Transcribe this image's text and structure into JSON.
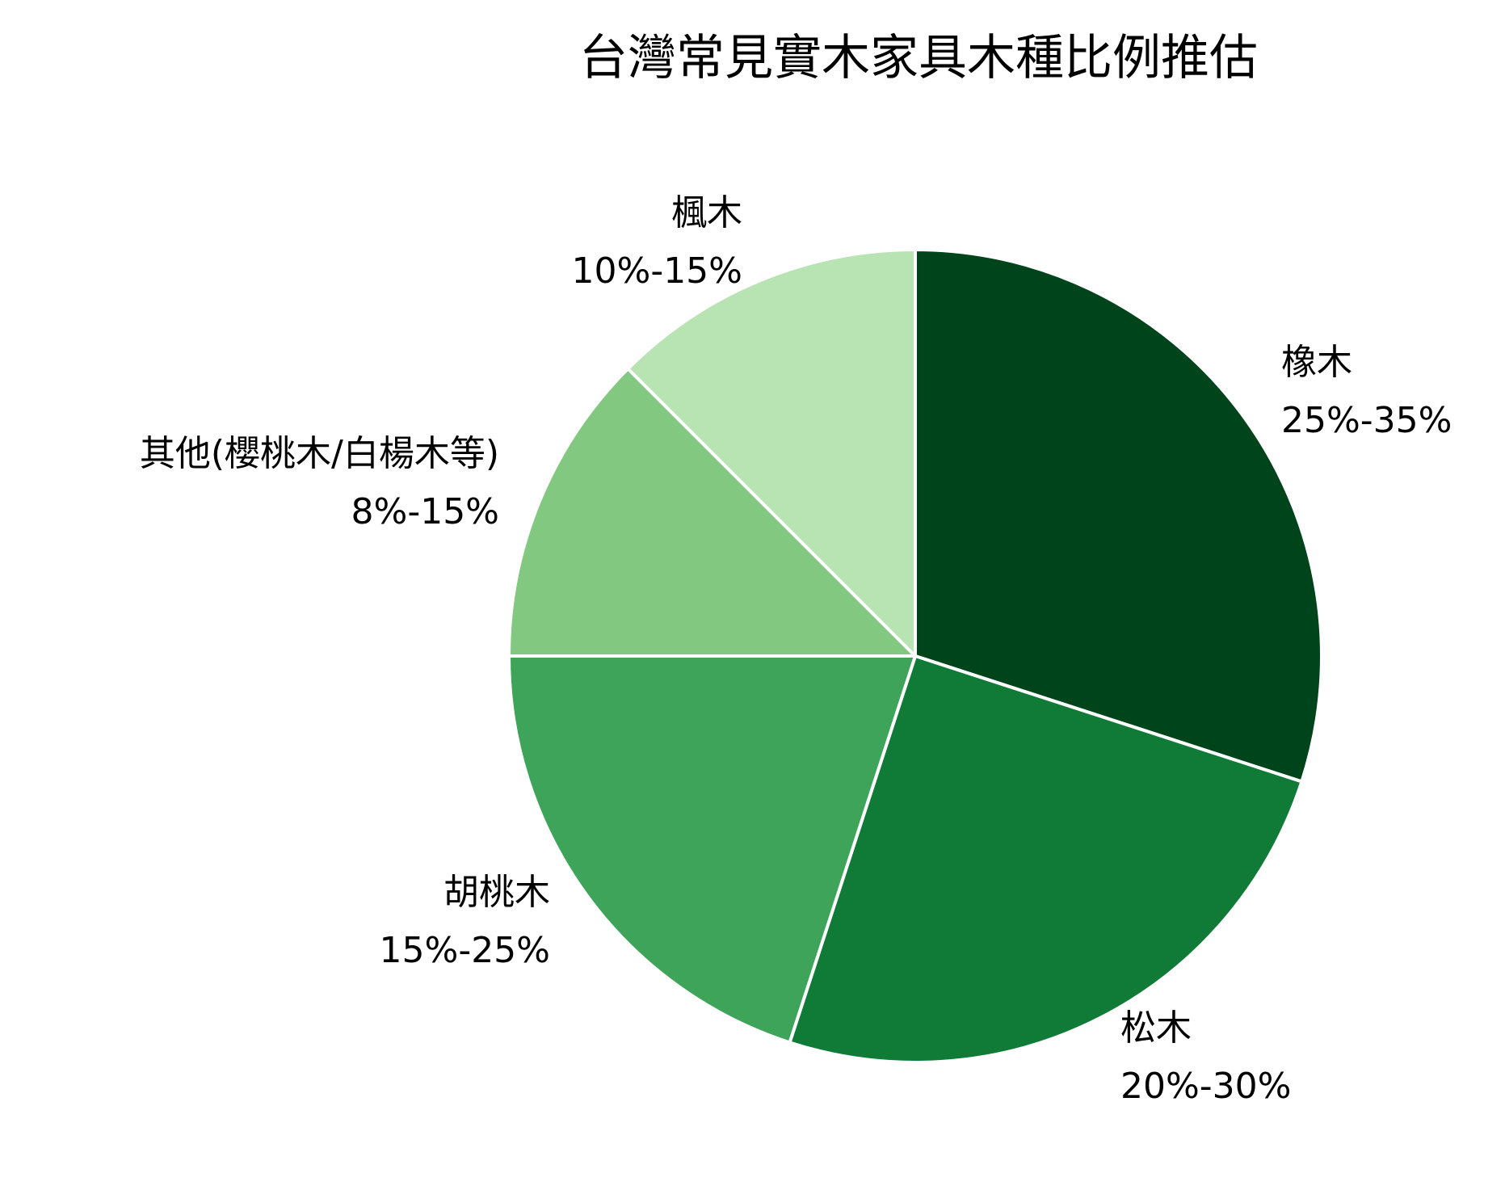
{
  "chart_data": {
    "type": "pie",
    "title": "台灣常見實木家具木種比例推估",
    "start_angle": "12 o'clock",
    "direction": "clockwise",
    "slices": [
      {
        "name": "橡木",
        "range_label": "25%-35%",
        "value": 30,
        "color": "#00441b"
      },
      {
        "name": "松木",
        "range_label": "20%-30%",
        "value": 25,
        "color": "#107a37"
      },
      {
        "name": "胡桃木",
        "range_label": "15%-25%",
        "value": 20,
        "color": "#3da45a"
      },
      {
        "name": "其他(櫻桃木/白楊木等)",
        "range_label": "8%-15%",
        "value": 12.5,
        "color": "#82c881"
      },
      {
        "name": "楓木",
        "range_label": "10%-15%",
        "value": 12.5,
        "color": "#b8e3b2"
      }
    ]
  }
}
